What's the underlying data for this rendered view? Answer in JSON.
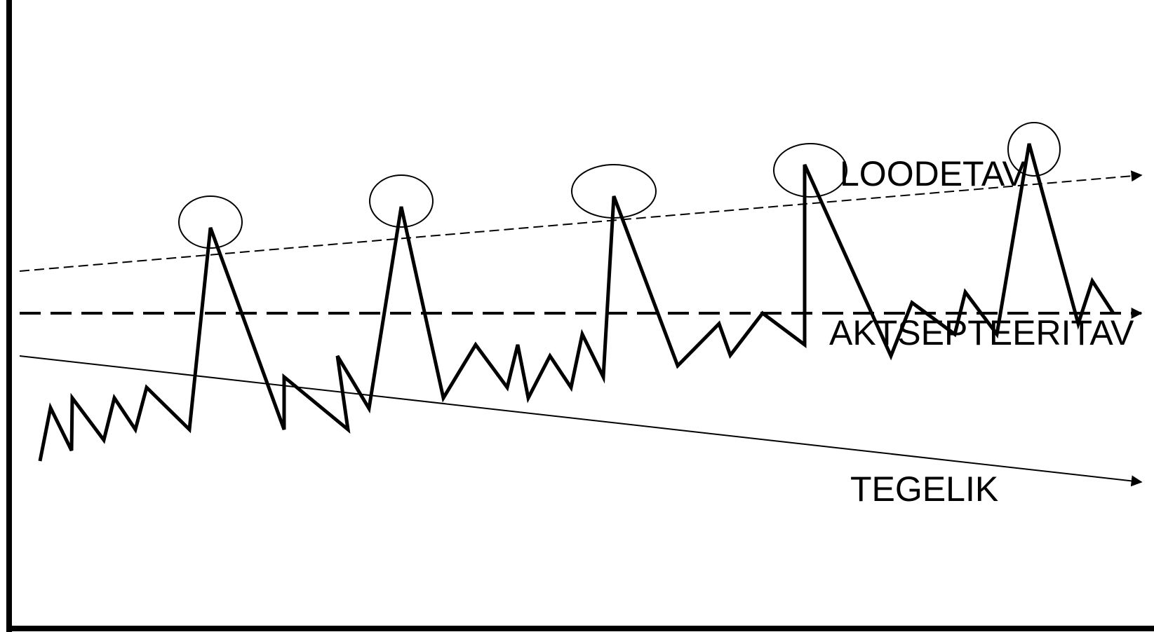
{
  "diagram": {
    "labels": {
      "upper": "LOODETAV",
      "middle": "AKTSEPTEERITAV",
      "lower": "TEGELIK"
    },
    "colors": {
      "stroke": "#000000",
      "background": "#ffffff"
    }
  }
}
